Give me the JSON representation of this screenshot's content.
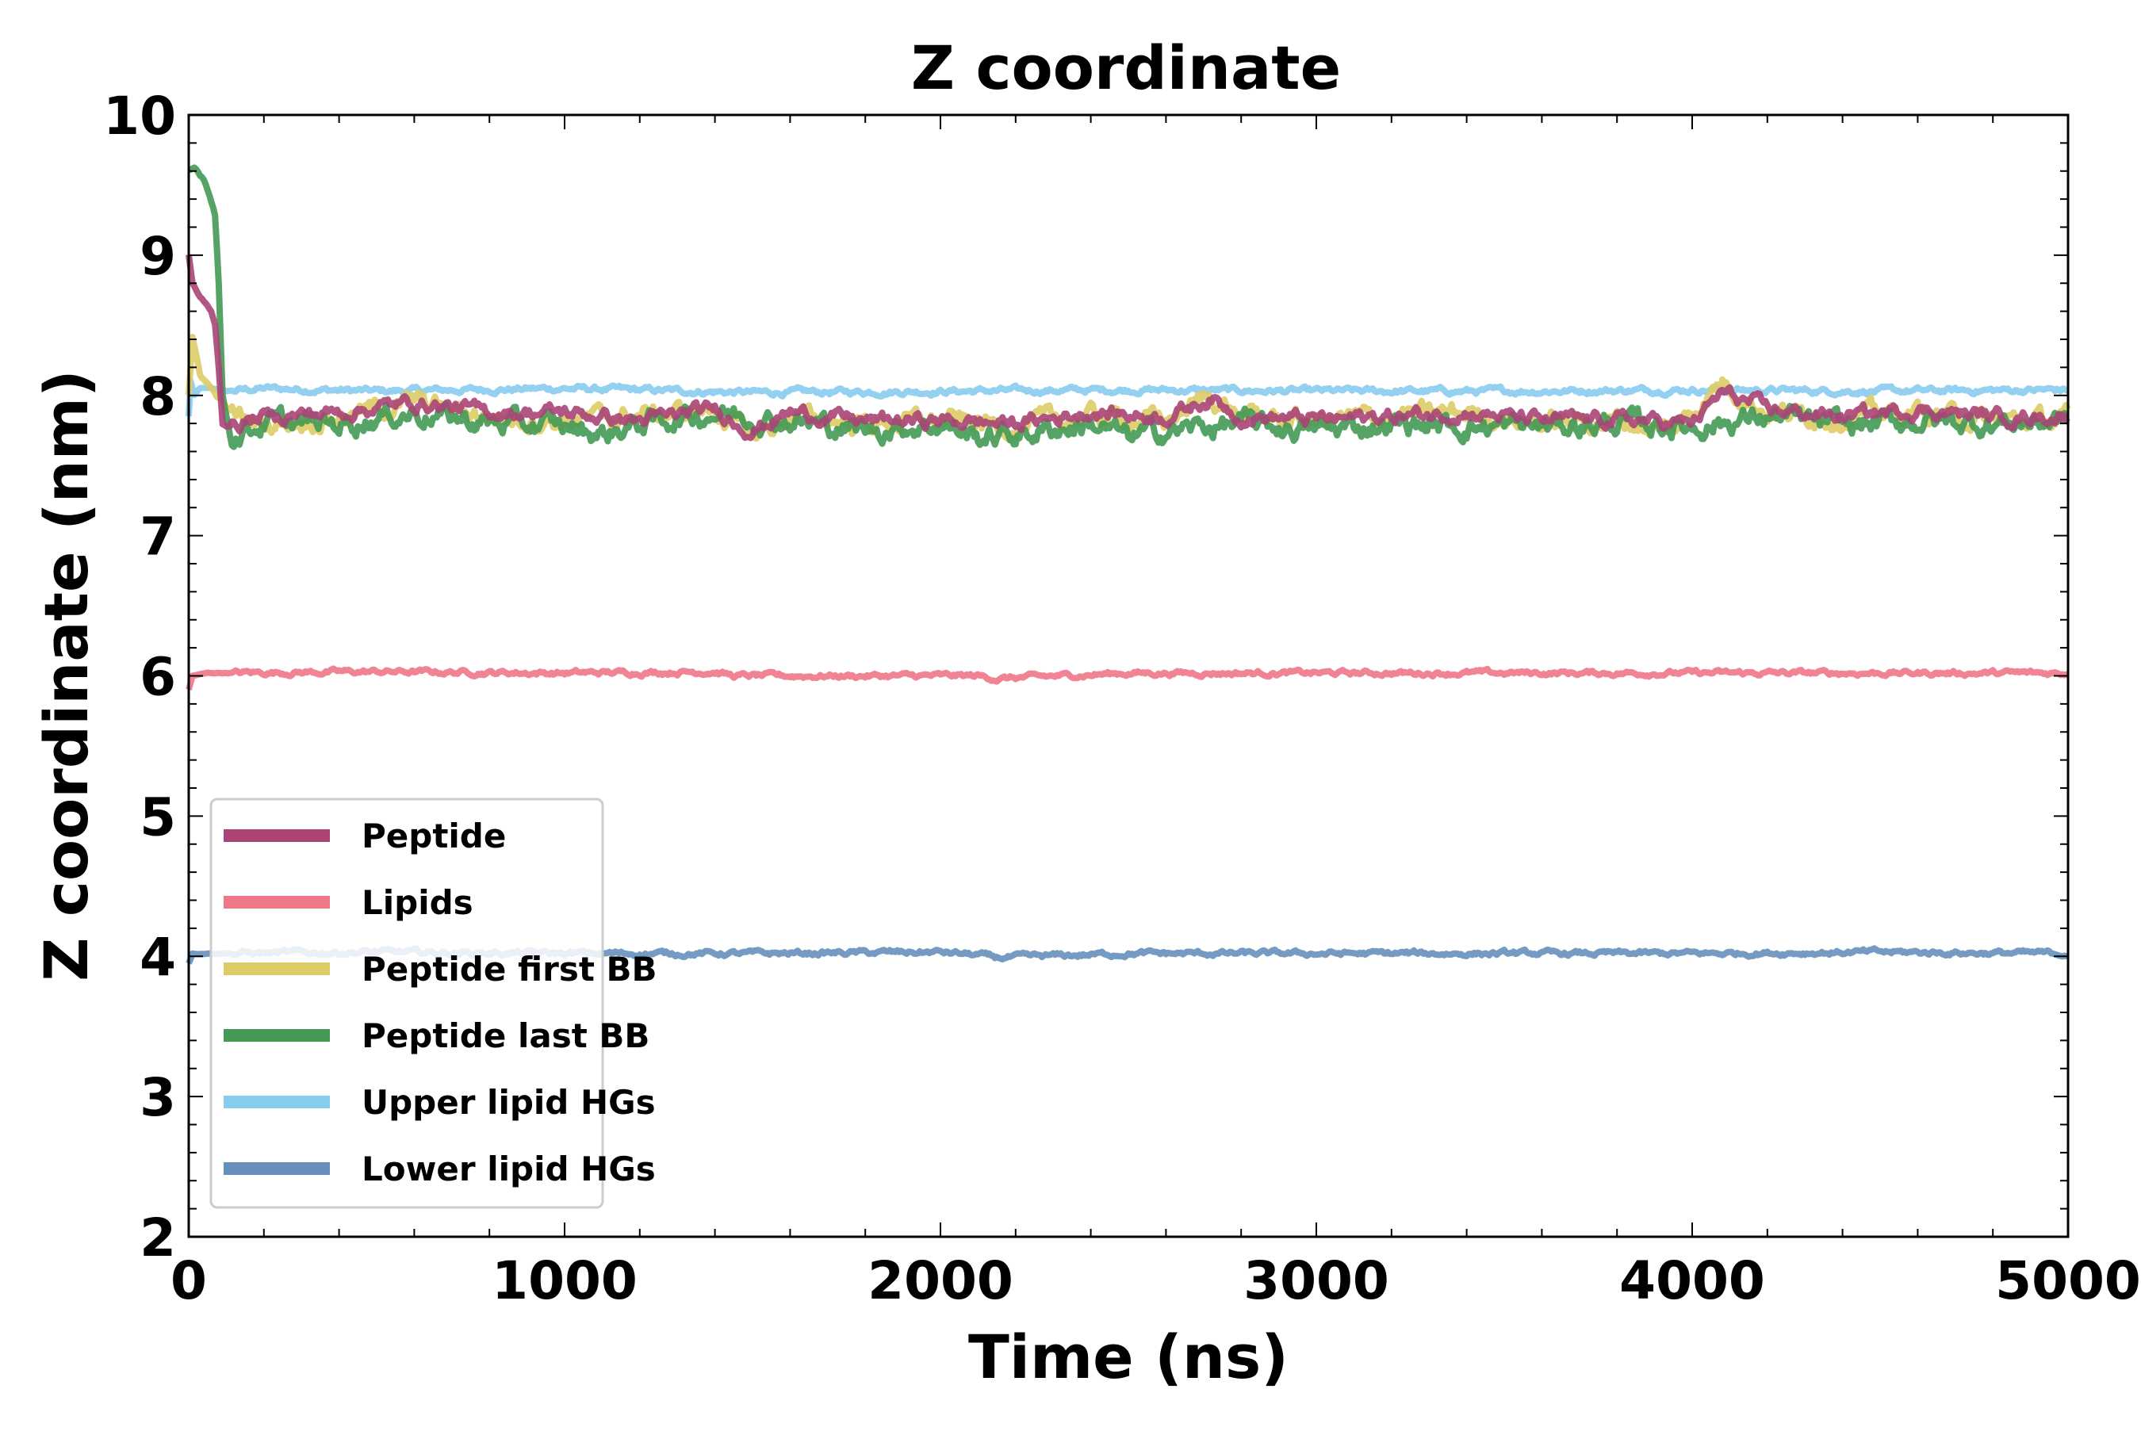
{
  "chart_data": {
    "type": "line",
    "title": "Z coordinate",
    "xlabel": "Time (ns)",
    "ylabel": "Z coordinate (nm)",
    "xlim": [
      0,
      5000
    ],
    "ylim": [
      2,
      10
    ],
    "x_ticks": [
      {
        "value": 0,
        "label": "0"
      },
      {
        "value": 1000,
        "label": "1000"
      },
      {
        "value": 2000,
        "label": "2000"
      },
      {
        "value": 3000,
        "label": "3000"
      },
      {
        "value": 4000,
        "label": "4000"
      },
      {
        "value": 5000,
        "label": "5000"
      }
    ],
    "y_ticks": [
      {
        "value": 2,
        "label": "2"
      },
      {
        "value": 3,
        "label": "3"
      },
      {
        "value": 4,
        "label": "4"
      },
      {
        "value": 5,
        "label": "5"
      },
      {
        "value": 6,
        "label": "6"
      },
      {
        "value": 7,
        "label": "7"
      },
      {
        "value": 8,
        "label": "8"
      },
      {
        "value": 9,
        "label": "9"
      },
      {
        "value": 10,
        "label": "10"
      }
    ],
    "x_minor_step": 200,
    "y_minor_step": 0.2,
    "grid": false,
    "legend_position": "lower-left",
    "series": [
      {
        "name": "Upper lipid HGs",
        "color": "#88ccee",
        "x": [
          0,
          5,
          15,
          30,
          60,
          100,
          200,
          500,
          1000,
          1500,
          2000,
          2500,
          3000,
          3500,
          4000,
          4500,
          5000
        ],
        "values": [
          7.85,
          8.1,
          8.0,
          8.05,
          8.05,
          8.03,
          8.05,
          8.03,
          8.05,
          8.02,
          8.03,
          8.04,
          8.03,
          8.03,
          8.04,
          8.03,
          8.04
        ],
        "noise_amp": 0.03
      },
      {
        "name": "Lipids",
        "color": "#ee7788",
        "x": [
          0,
          10,
          50,
          500,
          1000,
          1400,
          1450,
          2100,
          2150,
          2500,
          3000,
          3500,
          4000,
          4500,
          5000
        ],
        "values": [
          5.9,
          6.0,
          6.02,
          6.03,
          6.02,
          6.03,
          6.0,
          6.0,
          5.98,
          6.02,
          6.02,
          6.02,
          6.02,
          6.02,
          6.02
        ],
        "noise_amp": 0.025
      },
      {
        "name": "Lower lipid HGs",
        "color": "#6690bb",
        "x": [
          0,
          10,
          50,
          500,
          1000,
          1500,
          2000,
          2100,
          2150,
          2500,
          3000,
          3500,
          4000,
          4500,
          5000
        ],
        "values": [
          3.95,
          4.02,
          4.02,
          4.03,
          4.02,
          4.02,
          4.03,
          4.01,
          3.99,
          4.02,
          4.02,
          4.02,
          4.02,
          4.03,
          4.02
        ],
        "noise_amp": 0.025
      },
      {
        "name": "Peptide first BB",
        "color": "#ddcc66",
        "x": [
          0,
          10,
          30,
          60,
          90,
          120,
          200,
          400,
          600,
          800,
          1000,
          1200,
          1400,
          1500,
          1600,
          1800,
          2000,
          2200,
          2400,
          2600,
          2720,
          2800,
          3000,
          3200,
          3400,
          3600,
          3800,
          3950,
          4080,
          4200,
          4400,
          4600,
          4800,
          5000
        ],
        "values": [
          8.0,
          8.4,
          8.15,
          8.05,
          7.95,
          7.85,
          7.8,
          7.85,
          7.95,
          7.85,
          7.82,
          7.85,
          7.9,
          7.7,
          7.85,
          7.8,
          7.82,
          7.78,
          7.85,
          7.82,
          8.0,
          7.85,
          7.82,
          7.85,
          7.88,
          7.8,
          7.82,
          7.75,
          8.1,
          7.88,
          7.85,
          7.88,
          7.82,
          7.82
        ],
        "noise_amp": 0.1
      },
      {
        "name": "Peptide last BB",
        "color": "#449955",
        "x": [
          0,
          15,
          40,
          60,
          70,
          80,
          90,
          110,
          200,
          400,
          600,
          800,
          1000,
          1100,
          1200,
          1400,
          1600,
          1800,
          2000,
          2100,
          2200,
          2400,
          2500,
          2600,
          2800,
          3000,
          3200,
          3400,
          3600,
          3800,
          4000,
          4200,
          4400,
          4600,
          4800,
          5000
        ],
        "values": [
          9.6,
          9.62,
          9.55,
          9.4,
          9.3,
          8.8,
          8.0,
          7.72,
          7.8,
          7.8,
          7.88,
          7.8,
          7.78,
          7.72,
          7.8,
          7.88,
          7.82,
          7.75,
          7.8,
          7.7,
          7.72,
          7.8,
          7.7,
          7.75,
          7.8,
          7.75,
          7.8,
          7.78,
          7.78,
          7.8,
          7.78,
          7.85,
          7.78,
          7.82,
          7.8,
          7.82
        ],
        "noise_amp": 0.11
      },
      {
        "name": "Peptide",
        "color": "#aa4477",
        "x": [
          0,
          10,
          30,
          60,
          70,
          80,
          90,
          110,
          200,
          400,
          600,
          800,
          1000,
          1200,
          1400,
          1500,
          1600,
          1800,
          2000,
          2200,
          2400,
          2600,
          2720,
          2800,
          3000,
          3200,
          3400,
          3600,
          3800,
          4000,
          4080,
          4200,
          4400,
          4600,
          4800,
          5000
        ],
        "values": [
          9.0,
          8.8,
          8.7,
          8.6,
          8.5,
          8.2,
          7.8,
          7.78,
          7.85,
          7.88,
          7.95,
          7.88,
          7.88,
          7.82,
          7.9,
          7.75,
          7.88,
          7.82,
          7.82,
          7.8,
          7.88,
          7.85,
          7.98,
          7.85,
          7.83,
          7.85,
          7.88,
          7.82,
          7.83,
          7.8,
          8.02,
          7.9,
          7.85,
          7.9,
          7.85,
          7.85
        ],
        "noise_amp": 0.07
      }
    ],
    "legend": [
      {
        "label": "Peptide",
        "color": "#aa4477"
      },
      {
        "label": "Lipids",
        "color": "#ee7788"
      },
      {
        "label": "Peptide first BB",
        "color": "#ddcc66"
      },
      {
        "label": "Peptide last BB",
        "color": "#449955"
      },
      {
        "label": "Upper lipid HGs",
        "color": "#88ccee"
      },
      {
        "label": "Lower lipid HGs",
        "color": "#6690bb"
      }
    ]
  }
}
